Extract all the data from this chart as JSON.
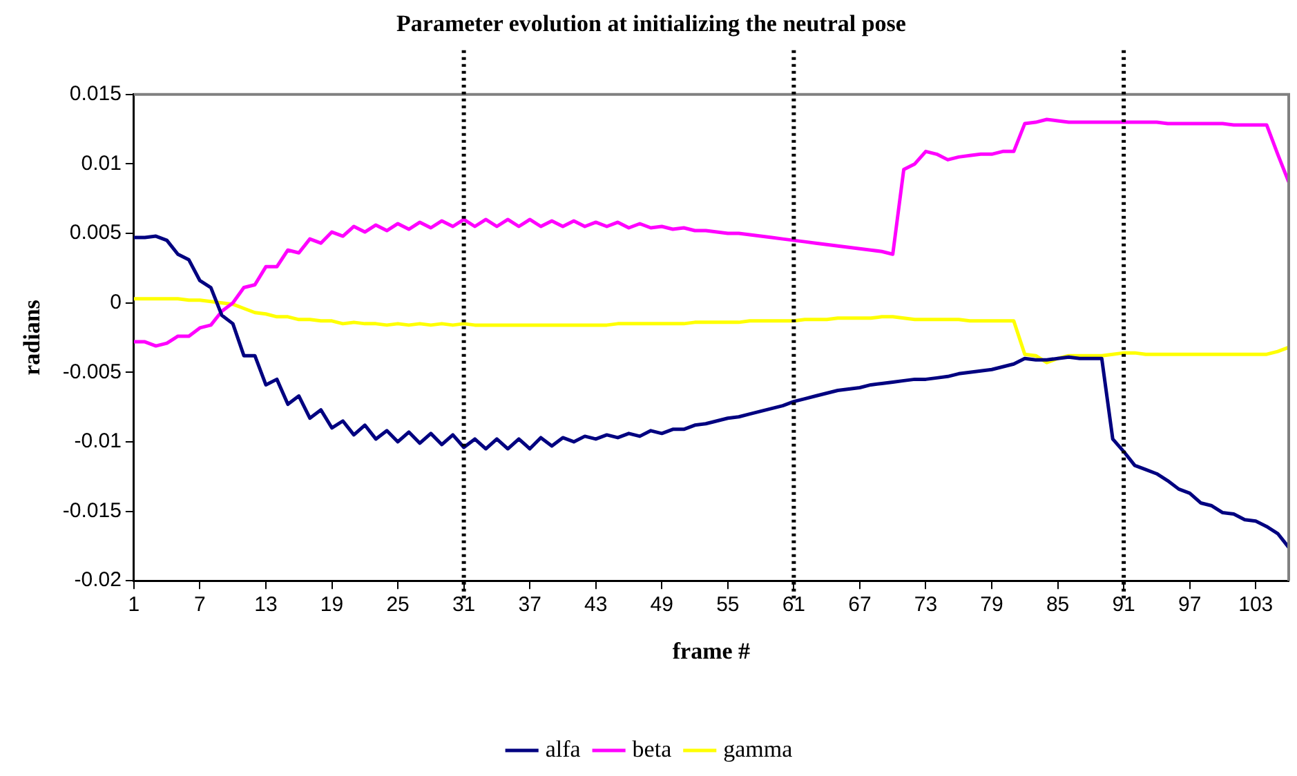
{
  "chart_data": {
    "type": "line",
    "title": "Parameter evolution at initializing the neutral pose",
    "xlabel": "frame #",
    "ylabel": "radians",
    "categories": [
      "1",
      null,
      null,
      null,
      null,
      null,
      "7",
      null,
      null,
      null,
      null,
      null,
      "13",
      null,
      null,
      null,
      null,
      null,
      "19",
      null,
      null,
      null,
      null,
      null,
      "25",
      null,
      null,
      null,
      null,
      null,
      "31",
      null,
      null,
      null,
      null,
      null,
      "37",
      null,
      null,
      null,
      null,
      null,
      "43",
      null,
      null,
      null,
      null,
      null,
      "49",
      null,
      null,
      null,
      null,
      null,
      "55",
      null,
      null,
      null,
      null,
      null,
      "61",
      null,
      null,
      null,
      null,
      null,
      "67",
      null,
      null,
      null,
      null,
      null,
      "73",
      null,
      null,
      null,
      null,
      null,
      "79",
      null,
      null,
      null,
      null,
      null,
      "85",
      null,
      null,
      null,
      null,
      null,
      "91",
      null,
      null,
      null,
      null,
      null,
      "97",
      null,
      null,
      null,
      null,
      null,
      "103",
      null,
      null,
      null
    ],
    "series": [
      {
        "name": "alfa",
        "color": "#000080",
        "values": [
          0.0047,
          0.0047,
          0.0048,
          0.0045,
          0.0035,
          0.0031,
          0.0016,
          0.0011,
          -0.0009,
          -0.0015,
          -0.0038,
          -0.0038,
          -0.0059,
          -0.0055,
          -0.0073,
          -0.0067,
          -0.0083,
          -0.0077,
          -0.009,
          -0.0085,
          -0.0095,
          -0.0088,
          -0.0098,
          -0.0092,
          -0.01,
          -0.0093,
          -0.0101,
          -0.0094,
          -0.0102,
          -0.0095,
          -0.0104,
          -0.0098,
          -0.0105,
          -0.0098,
          -0.0105,
          -0.0098,
          -0.0105,
          -0.0097,
          -0.0103,
          -0.0097,
          -0.01,
          -0.0096,
          -0.0098,
          -0.0095,
          -0.0097,
          -0.0094,
          -0.0096,
          -0.0092,
          -0.0094,
          -0.0091,
          -0.0091,
          -0.0088,
          -0.0087,
          -0.0085,
          -0.0083,
          -0.0082,
          -0.008,
          -0.0078,
          -0.0076,
          -0.0074,
          -0.0071,
          -0.0069,
          -0.0067,
          -0.0065,
          -0.0063,
          -0.0062,
          -0.0061,
          -0.0059,
          -0.0058,
          -0.0057,
          -0.0056,
          -0.0055,
          -0.0055,
          -0.0054,
          -0.0053,
          -0.0051,
          -0.005,
          -0.0049,
          -0.0048,
          -0.0046,
          -0.0044,
          -0.004,
          -0.0041,
          -0.0041,
          -0.004,
          -0.0039,
          -0.004,
          -0.004,
          -0.004,
          -0.0098,
          -0.0107,
          -0.0117,
          -0.012,
          -0.0123,
          -0.0128,
          -0.0134,
          -0.0137,
          -0.0144,
          -0.0146,
          -0.0151,
          -0.0152,
          -0.0156,
          -0.0157,
          -0.0161,
          -0.0166,
          -0.0176
        ]
      },
      {
        "name": "beta",
        "color": "#ff00ff",
        "values": [
          -0.0028,
          -0.0028,
          -0.0031,
          -0.0029,
          -0.0024,
          -0.0024,
          -0.0018,
          -0.0016,
          -0.0006,
          0.0,
          0.0011,
          0.0013,
          0.0026,
          0.0026,
          0.0038,
          0.0036,
          0.0046,
          0.0043,
          0.0051,
          0.0048,
          0.0055,
          0.0051,
          0.0056,
          0.0052,
          0.0057,
          0.0053,
          0.0058,
          0.0054,
          0.0059,
          0.0055,
          0.006,
          0.0055,
          0.006,
          0.0055,
          0.006,
          0.0055,
          0.006,
          0.0055,
          0.0059,
          0.0055,
          0.0059,
          0.0055,
          0.0058,
          0.0055,
          0.0058,
          0.0054,
          0.0057,
          0.0054,
          0.0055,
          0.0053,
          0.0054,
          0.0052,
          0.0052,
          0.0051,
          0.005,
          0.005,
          0.0049,
          0.0048,
          0.0047,
          0.0046,
          0.0045,
          0.0044,
          0.0043,
          0.0042,
          0.0041,
          0.004,
          0.0039,
          0.0038,
          0.0037,
          0.0035,
          0.0096,
          0.01,
          0.0109,
          0.0107,
          0.0103,
          0.0105,
          0.0106,
          0.0107,
          0.0107,
          0.0109,
          0.0109,
          0.0129,
          0.013,
          0.0132,
          0.0131,
          0.013,
          0.013,
          0.013,
          0.013,
          0.013,
          0.013,
          0.013,
          0.013,
          0.013,
          0.0129,
          0.0129,
          0.0129,
          0.0129,
          0.0129,
          0.0129,
          0.0128,
          0.0128,
          0.0128,
          0.0128,
          0.0107,
          0.0087
        ]
      },
      {
        "name": "gamma",
        "color": "#ffff00",
        "values": [
          0.0003,
          0.0003,
          0.0003,
          0.0003,
          0.0003,
          0.0002,
          0.0002,
          0.0001,
          0.0,
          -0.0001,
          -0.0004,
          -0.0007,
          -0.0008,
          -0.001,
          -0.001,
          -0.0012,
          -0.0012,
          -0.0013,
          -0.0013,
          -0.0015,
          -0.0014,
          -0.0015,
          -0.0015,
          -0.0016,
          -0.0015,
          -0.0016,
          -0.0015,
          -0.0016,
          -0.0015,
          -0.0016,
          -0.0015,
          -0.0016,
          -0.0016,
          -0.0016,
          -0.0016,
          -0.0016,
          -0.0016,
          -0.0016,
          -0.0016,
          -0.0016,
          -0.0016,
          -0.0016,
          -0.0016,
          -0.0016,
          -0.0015,
          -0.0015,
          -0.0015,
          -0.0015,
          -0.0015,
          -0.0015,
          -0.0015,
          -0.0014,
          -0.0014,
          -0.0014,
          -0.0014,
          -0.0014,
          -0.0013,
          -0.0013,
          -0.0013,
          -0.0013,
          -0.0013,
          -0.0012,
          -0.0012,
          -0.0012,
          -0.0011,
          -0.0011,
          -0.0011,
          -0.0011,
          -0.001,
          -0.001,
          -0.0011,
          -0.0012,
          -0.0012,
          -0.0012,
          -0.0012,
          -0.0012,
          -0.0013,
          -0.0013,
          -0.0013,
          -0.0013,
          -0.0013,
          -0.0037,
          -0.0038,
          -0.0043,
          -0.004,
          -0.0038,
          -0.0038,
          -0.0038,
          -0.0038,
          -0.0037,
          -0.0036,
          -0.0036,
          -0.0037,
          -0.0037,
          -0.0037,
          -0.0037,
          -0.0037,
          -0.0037,
          -0.0037,
          -0.0037,
          -0.0037,
          -0.0037,
          -0.0037,
          -0.0037,
          -0.0035,
          -0.0032
        ]
      }
    ],
    "ylim": [
      -0.02,
      0.015
    ],
    "yticks": [
      -0.02,
      -0.015,
      -0.01,
      -0.005,
      0,
      0.005,
      0.01,
      0.015
    ],
    "ref_lines": [
      {
        "axis": "x",
        "value": "31",
        "line_style": "dotted",
        "color": "#000000"
      },
      {
        "axis": "x",
        "value": "61",
        "line_style": "dotted",
        "color": "#000000"
      },
      {
        "axis": "x",
        "value": "91",
        "line_style": "dotted",
        "color": "#000000"
      }
    ],
    "grid": false,
    "legend": "bottom",
    "marker": "none",
    "line_style": "solid"
  }
}
